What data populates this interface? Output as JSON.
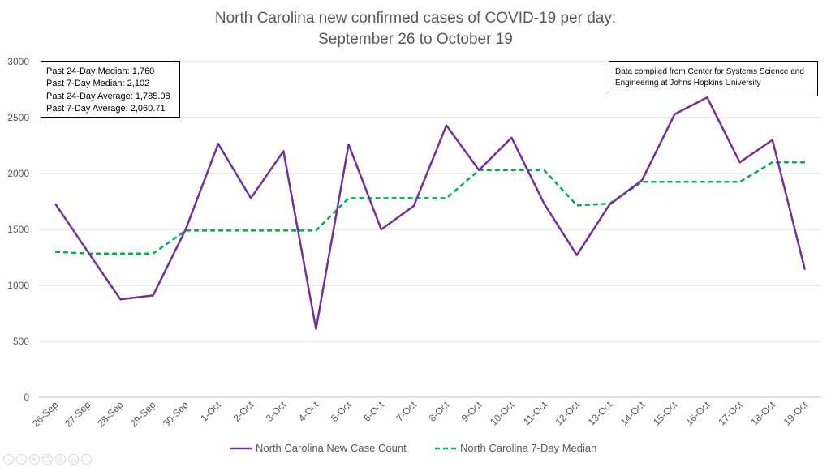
{
  "chart_data": {
    "type": "line",
    "title": [
      "North Carolina new confirmed cases of COVID-19 per day:",
      "September 26 to October 19"
    ],
    "xlabel": "",
    "ylabel": "",
    "ylim": [
      0,
      3000
    ],
    "yticks": [
      "0",
      "500",
      "1000",
      "1500",
      "2000",
      "2500",
      "3000"
    ],
    "grid": true,
    "legend_position": "bottom",
    "categories": [
      "26-Sep",
      "27-Sep",
      "28-Sep",
      "29-Sep",
      "30-Sep",
      "1-Oct",
      "2-Oct",
      "3-Oct",
      "4-Oct",
      "5-Oct",
      "6-Oct",
      "7-Oct",
      "8-Oct",
      "9-Oct",
      "10-Oct",
      "11-Oct",
      "12-Oct",
      "13-Oct",
      "14-Oct",
      "15-Oct",
      "16-Oct",
      "17-Oct",
      "18-Oct",
      "19-Oct"
    ],
    "series": [
      {
        "name": "North Carolina New Case Count",
        "style": "solid",
        "color": "#7030A0",
        "values": [
          1730,
          1300,
          875,
          910,
          1500,
          2265,
          1780,
          2200,
          610,
          2260,
          1500,
          1710,
          2430,
          2030,
          2320,
          1730,
          1270,
          1720,
          1940,
          2530,
          2680,
          2100,
          2300,
          1140
        ]
      },
      {
        "name": "North Carolina 7-Day Median",
        "style": "dashed",
        "color": "#00B050",
        "values": [
          1300,
          1285,
          1285,
          1285,
          1490,
          1490,
          1490,
          1490,
          1490,
          1780,
          1780,
          1780,
          1780,
          2030,
          2030,
          2030,
          1715,
          1730,
          1925,
          1925,
          1925,
          1925,
          2100,
          2100
        ]
      }
    ],
    "annotations": {
      "stats": [
        "Past 24-Day Median: 1,760",
        "Past 7-Day Median: 2,102",
        "Past 24-Day Average: 1,785.08",
        "Past 7-Day Average: 2,060.71"
      ],
      "source_lines": [
        "Data compiled from Center for Systems Science and",
        "Engineering at Johns Hopkins University"
      ]
    }
  },
  "player_controls": [
    "back-icon",
    "forward-icon",
    "pen-icon",
    "copy-icon",
    "zoom-icon",
    "present-icon",
    "more-icon"
  ],
  "player_glyphs": [
    "‹",
    "›",
    "✎",
    "❐",
    "⚲",
    "▭",
    "⋯"
  ]
}
